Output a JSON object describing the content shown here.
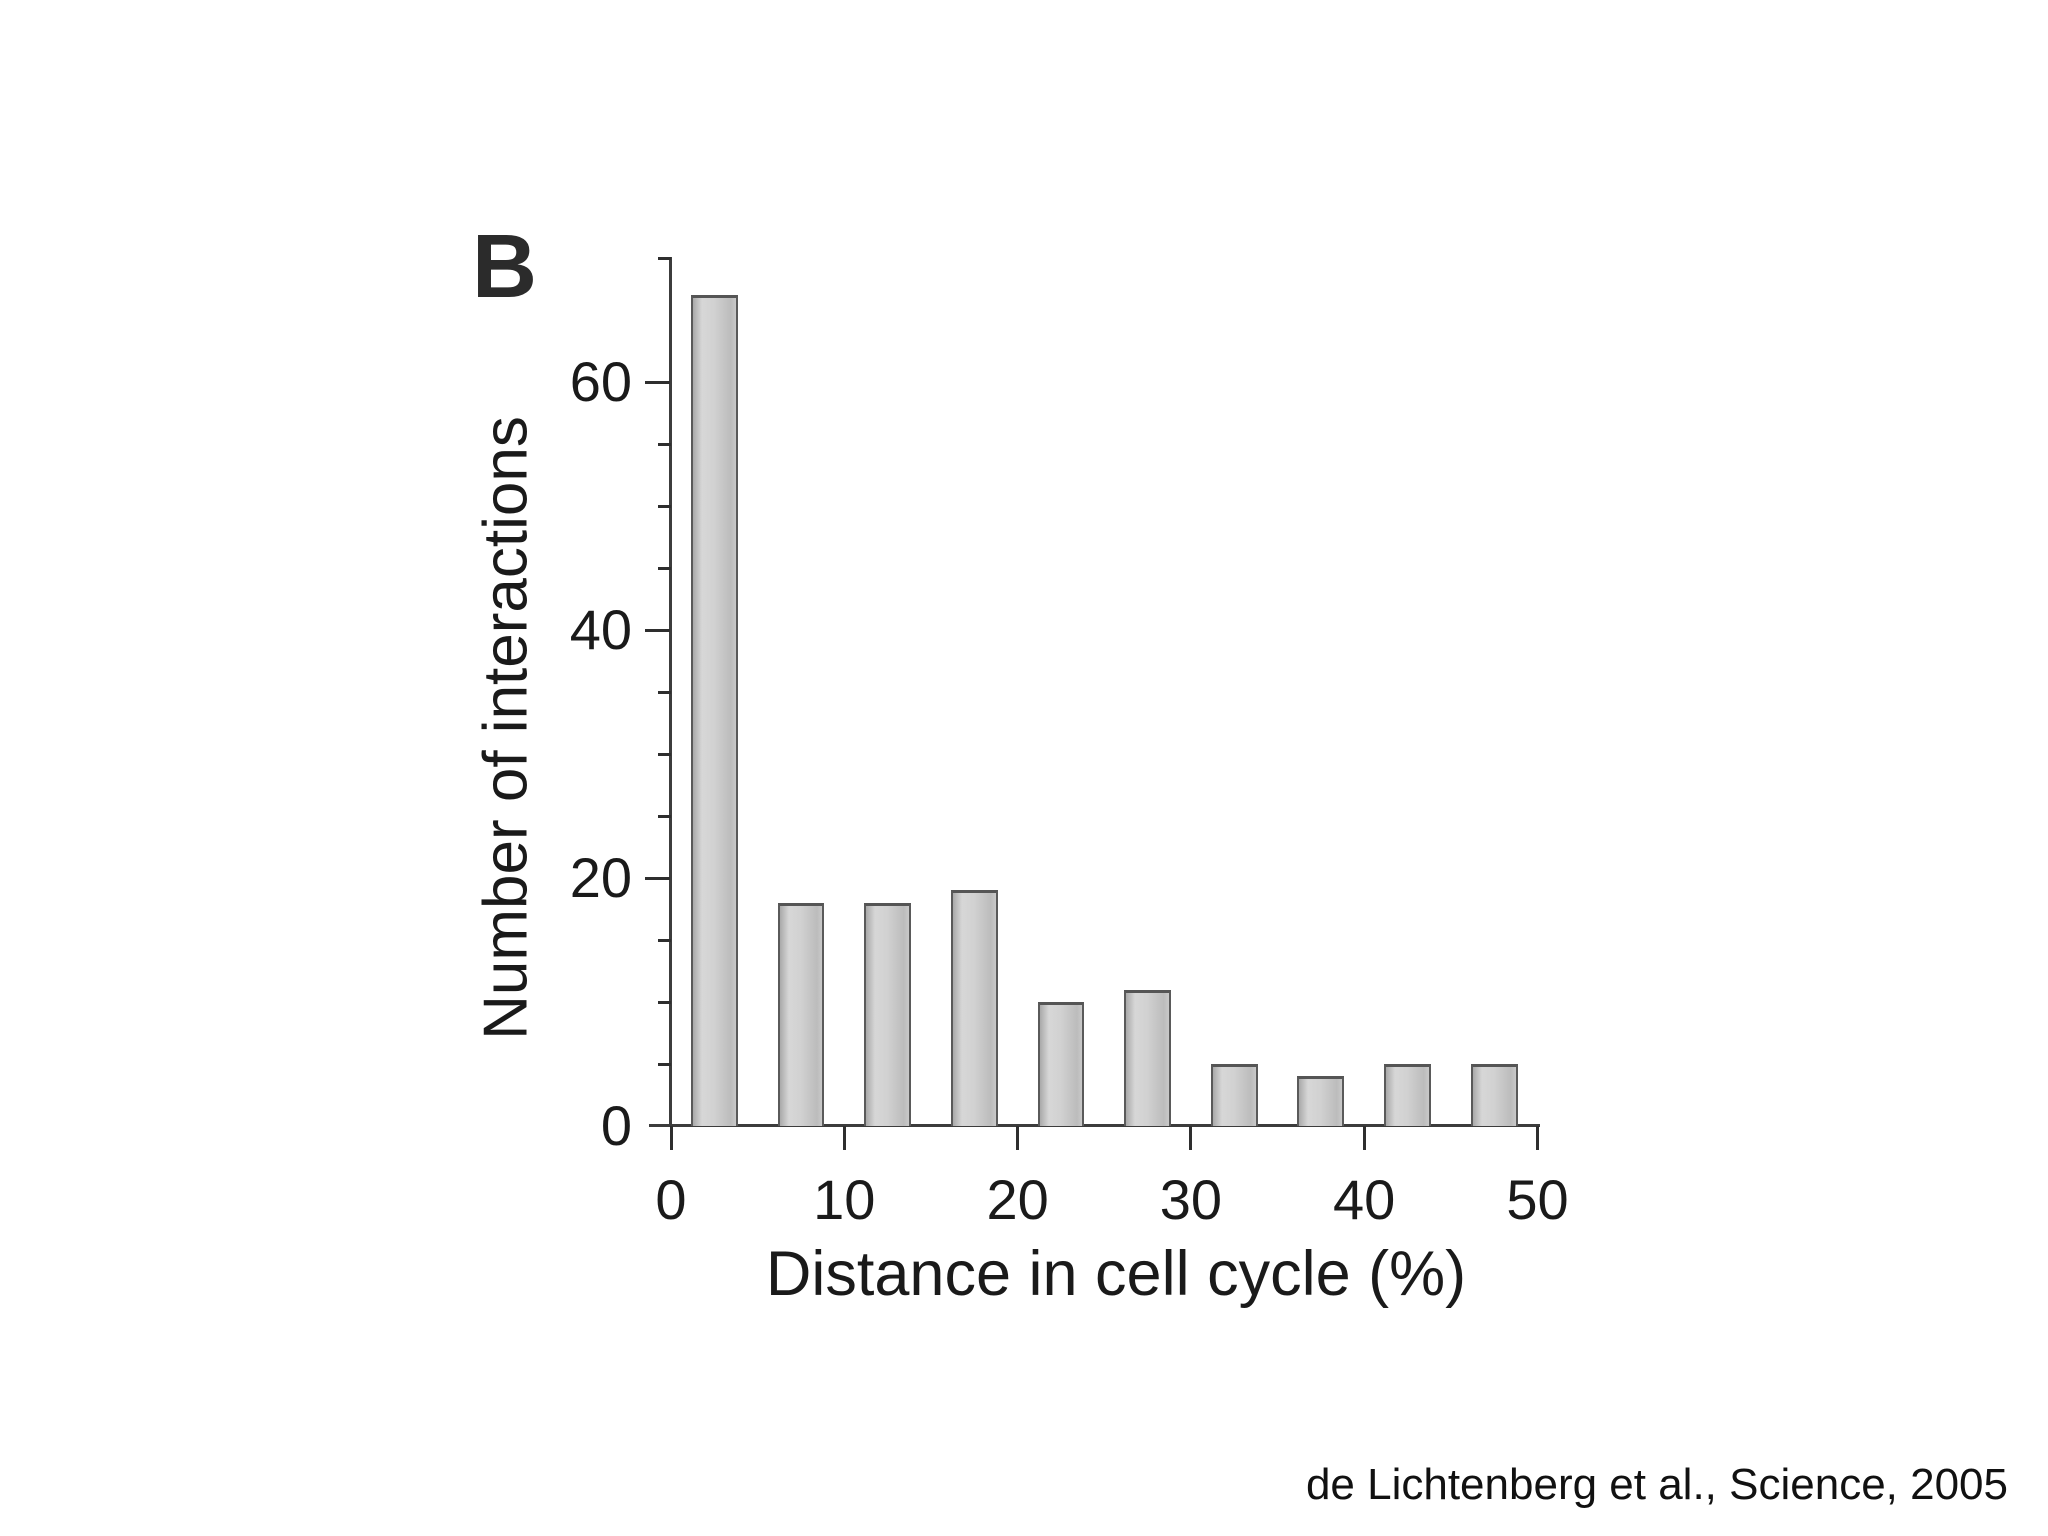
{
  "slide": {
    "citation": "de Lichtenberg et al., Science, 2005"
  },
  "chart_data": {
    "type": "bar",
    "panel_label": "B",
    "title": "",
    "xlabel": "Distance in cell cycle (%)",
    "ylabel": "Number of interactions",
    "x": [
      2.5,
      7.5,
      12.5,
      17.5,
      22.5,
      27.5,
      32.5,
      37.5,
      42.5,
      47.5
    ],
    "values": [
      67,
      18,
      18,
      19,
      10,
      11,
      5,
      4,
      5,
      5
    ],
    "bin_width": 5,
    "bar_width": 2.7,
    "xlim": [
      0,
      51.5
    ],
    "ylim": [
      0,
      70
    ],
    "x_tick_labels": [
      0,
      10,
      20,
      30,
      40,
      50
    ],
    "y_tick_labels": [
      0,
      20,
      40,
      60
    ],
    "y_major_ticks": [
      20,
      40,
      60
    ],
    "y_minor_ticks": [
      5,
      10,
      15,
      25,
      30,
      35,
      45,
      50,
      55,
      70
    ],
    "grid": false,
    "legend": null,
    "colors": {
      "background": "#ffffff",
      "bar_fill": "#cccccc",
      "bar_edge": "#5a5a5a",
      "axis": "#3c3c3c",
      "text": "#1a1a1a"
    }
  }
}
